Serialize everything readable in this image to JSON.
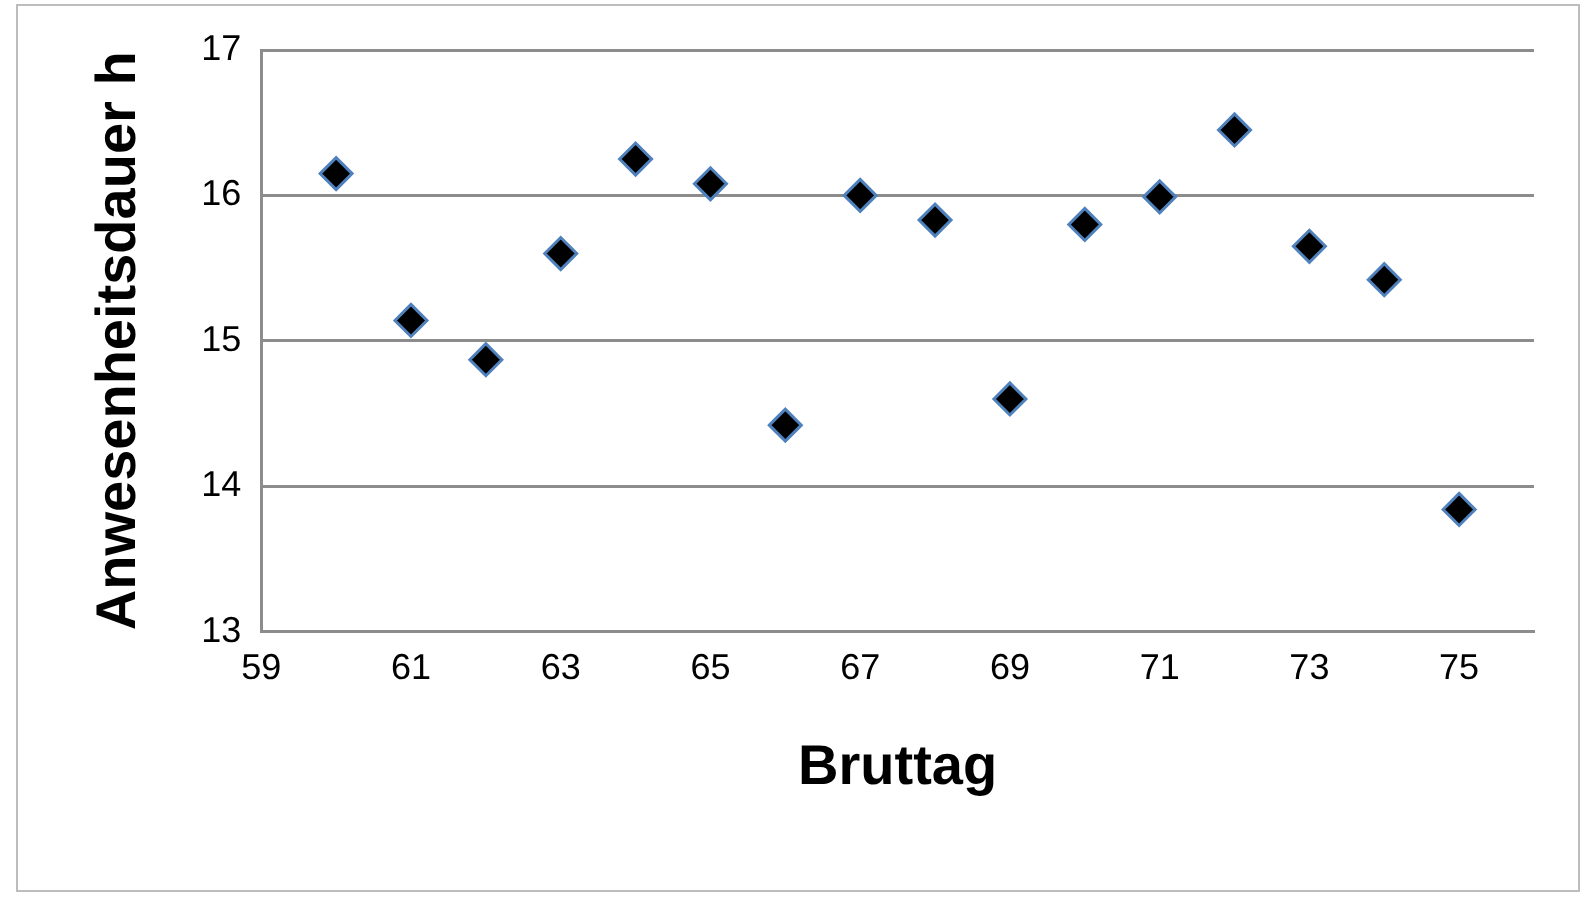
{
  "chart_data": {
    "type": "scatter",
    "xlabel": "Bruttag",
    "ylabel": "Anwesenheitsdauer h",
    "x": [
      60,
      61,
      62,
      63,
      64,
      65,
      66,
      67,
      68,
      69,
      70,
      71,
      72,
      73,
      74,
      75
    ],
    "series": [
      {
        "color": "#000000",
        "values": [
          16.15,
          15.14,
          14.87,
          15.6,
          16.25,
          16.08,
          14.42,
          16.0,
          15.83,
          14.6,
          15.8,
          15.99,
          16.45,
          15.65,
          15.42,
          13.84
        ]
      }
    ],
    "xlim": [
      59,
      76
    ],
    "xticks": [
      59,
      61,
      63,
      65,
      67,
      69,
      71,
      73,
      75
    ],
    "ylim": [
      13,
      17
    ],
    "yticks": [
      13,
      14,
      15,
      16,
      17
    ],
    "grid": "y",
    "legend": false,
    "marker": "diamond"
  }
}
